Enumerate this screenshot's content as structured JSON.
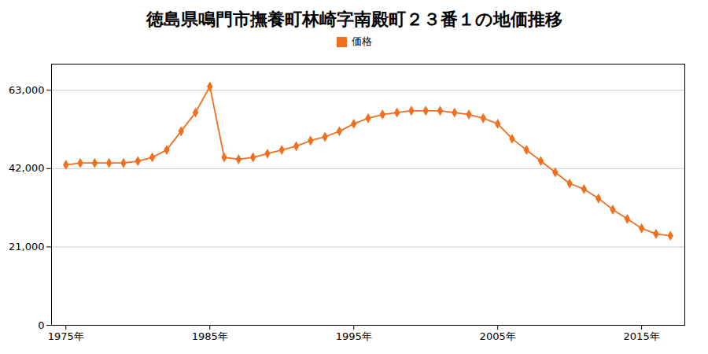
{
  "chart_data": {
    "type": "line",
    "title": "徳島県鳴門市撫養町林崎字南殿町２３番１の地価推移",
    "x": [
      1975,
      1976,
      1977,
      1978,
      1979,
      1980,
      1981,
      1982,
      1983,
      1984,
      1985,
      1986,
      1987,
      1988,
      1989,
      1990,
      1991,
      1992,
      1993,
      1994,
      1995,
      1996,
      1997,
      1998,
      1999,
      2000,
      2001,
      2002,
      2003,
      2004,
      2005,
      2006,
      2007,
      2008,
      2009,
      2010,
      2011,
      2012,
      2013,
      2014,
      2015,
      2016,
      2017
    ],
    "series": [
      {
        "name": "価格",
        "color": "#f07020",
        "marker": "diamond",
        "values": [
          43000,
          43500,
          43500,
          43500,
          43500,
          44000,
          45000,
          47000,
          52000,
          57000,
          64000,
          45000,
          44500,
          45000,
          46000,
          47000,
          48000,
          49500,
          50500,
          52000,
          54000,
          55500,
          56500,
          57000,
          57500,
          57500,
          57500,
          57000,
          56500,
          55500,
          54000,
          50000,
          47000,
          44000,
          41000,
          38000,
          36500,
          34000,
          31000,
          28500,
          26000,
          24500,
          24000
        ]
      }
    ],
    "xlim": [
      1974,
      2018
    ],
    "xticks": [
      {
        "value": 1975,
        "label": "1975年"
      },
      {
        "value": 1985,
        "label": "1985年"
      },
      {
        "value": 1995,
        "label": "1995年"
      },
      {
        "value": 2005,
        "label": "2005年"
      },
      {
        "value": 2015,
        "label": "2015年"
      }
    ],
    "ylim": [
      0,
      70000
    ],
    "yticks": [
      0,
      {
        "value": 21000,
        "label": "21,000"
      },
      {
        "value": 42000,
        "label": "42,000"
      },
      {
        "value": 63000,
        "label": "63,000"
      }
    ],
    "grid": "y",
    "legend": "top"
  }
}
